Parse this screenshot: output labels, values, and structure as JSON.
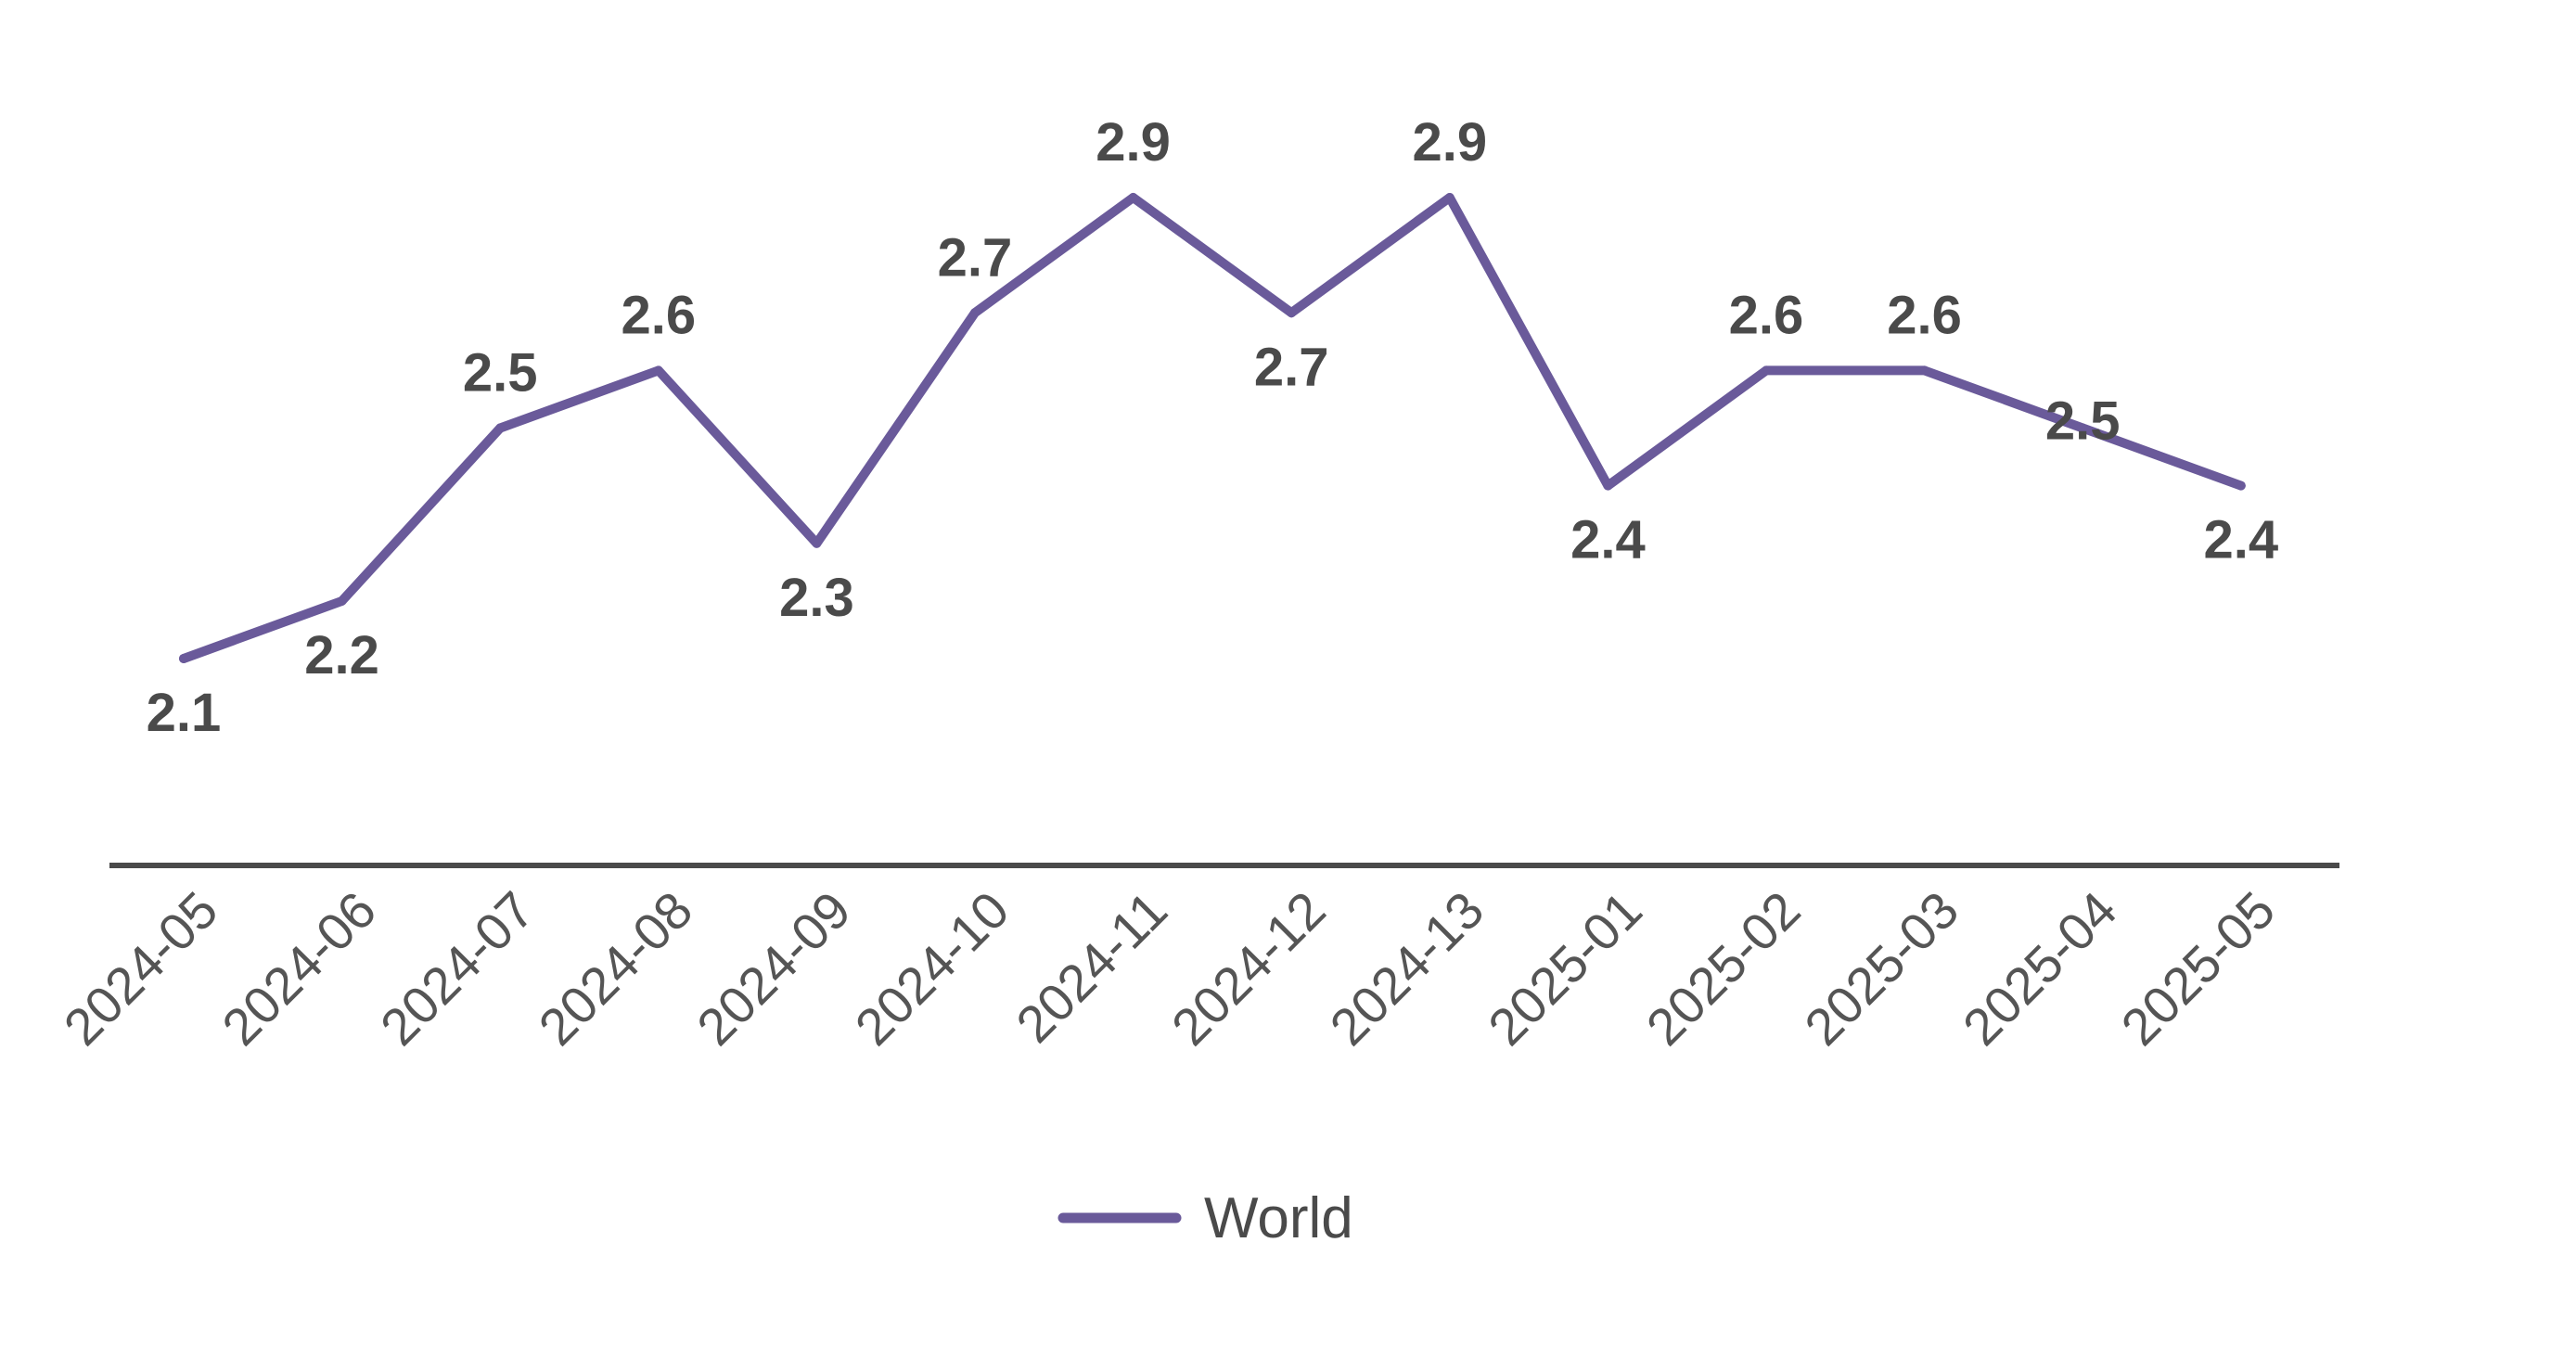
{
  "chart_data": {
    "type": "line",
    "categories": [
      "2024-05",
      "2024-06",
      "2024-07",
      "2024-08",
      "2024-09",
      "2024-10",
      "2024-11",
      "2024-12",
      "2024-13",
      "2025-01",
      "2025-02",
      "2025-03",
      "2025-04",
      "2025-05"
    ],
    "series": [
      {
        "name": "World",
        "values": [
          2.1,
          2.2,
          2.5,
          2.6,
          2.3,
          2.7,
          2.9,
          2.7,
          2.9,
          2.4,
          2.6,
          2.6,
          2.5,
          2.4
        ],
        "color": "#6a5a9a"
      }
    ],
    "title": "",
    "xlabel": "",
    "ylabel": "",
    "ylim": [
      1.7,
      3.1
    ],
    "grid": false,
    "legend": "bottom-center",
    "axis_color": "#4a4a4a",
    "label_color": "#4a4a4a"
  }
}
